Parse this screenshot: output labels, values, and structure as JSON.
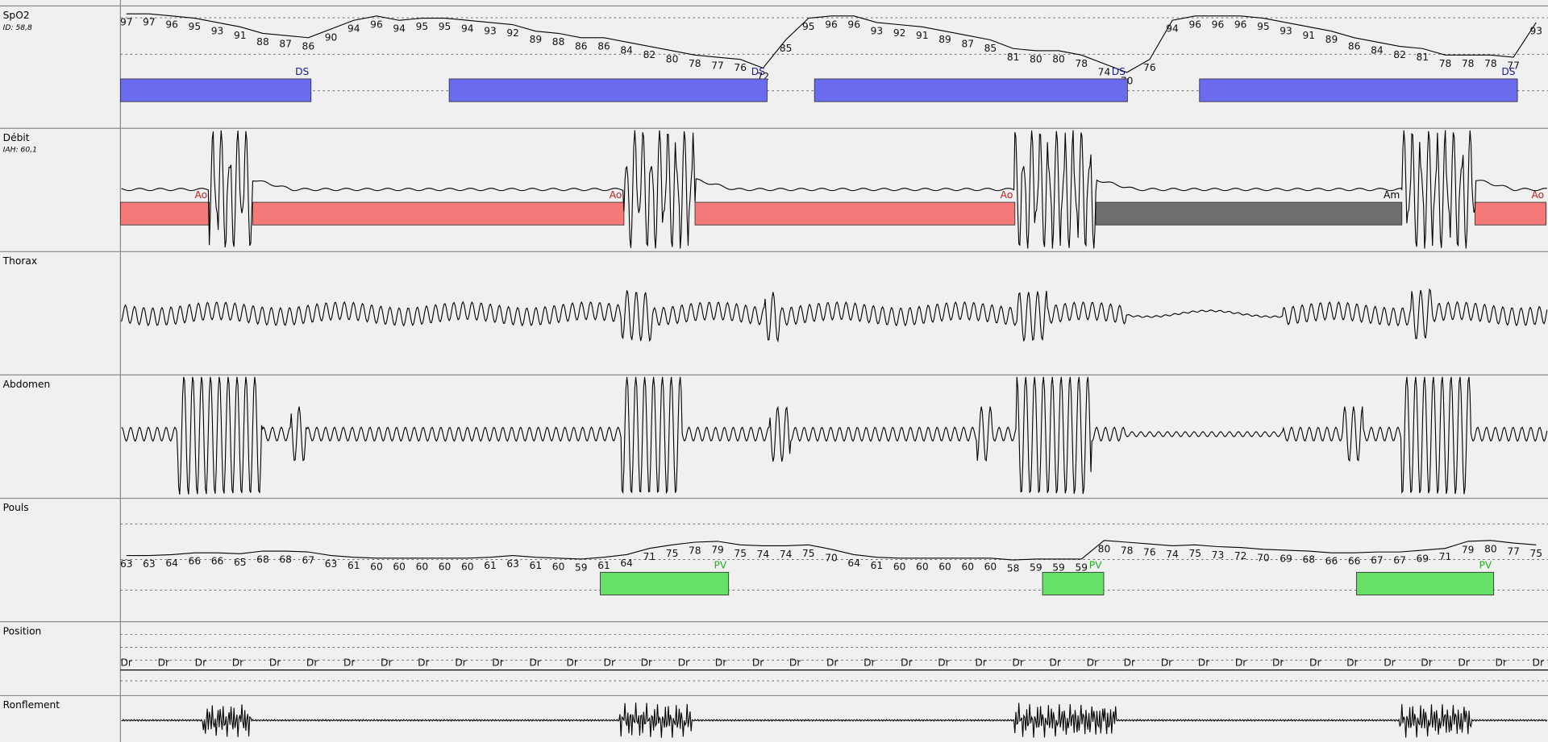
{
  "channels": [
    {
      "name": "SpO2",
      "info": "ID: 58,8",
      "readings": [
        97,
        97,
        96,
        95,
        93,
        91,
        88,
        87,
        86,
        90,
        94,
        96,
        94,
        95,
        95,
        94,
        93,
        92,
        89,
        88,
        86,
        86,
        84,
        82,
        80,
        78,
        77,
        76,
        72,
        85,
        95,
        96,
        96,
        93,
        92,
        91,
        89,
        87,
        85,
        81,
        80,
        80,
        78,
        74,
        70,
        76,
        94,
        96,
        96,
        96,
        95,
        93,
        91,
        89,
        86,
        84,
        82,
        81,
        78,
        78,
        78,
        77,
        93
      ],
      "events": [
        "DS",
        "DS",
        "DS",
        "DS"
      ]
    },
    {
      "name": "Débit",
      "info": "IAH: 60,1",
      "events": [
        "Ao",
        "Ao",
        "Ao",
        "Am",
        "Ao"
      ]
    },
    {
      "name": "Thorax"
    },
    {
      "name": "Abdomen"
    },
    {
      "name": "Pouls",
      "readings": [
        63,
        63,
        64,
        66,
        66,
        65,
        68,
        68,
        67,
        63,
        61,
        60,
        60,
        60,
        60,
        60,
        61,
        63,
        61,
        60,
        59,
        61,
        64,
        71,
        75,
        78,
        79,
        75,
        74,
        74,
        75,
        70,
        64,
        61,
        60,
        60,
        60,
        60,
        60,
        58,
        59,
        59,
        59,
        80,
        78,
        76,
        74,
        75,
        73,
        72,
        70,
        69,
        68,
        66,
        66,
        67,
        67,
        69,
        71,
        79,
        80,
        77,
        75
      ],
      "events": [
        "PV",
        "PV",
        "PV"
      ]
    },
    {
      "name": "Position",
      "readings": [
        "Dr",
        "Dr",
        "Dr",
        "Dr",
        "Dr",
        "Dr",
        "Dr",
        "Dr",
        "Dr",
        "Dr",
        "Dr",
        "Dr",
        "Dr",
        "Dr",
        "Dr",
        "Dr",
        "Dr",
        "Dr",
        "Dr",
        "Dr",
        "Dr",
        "Dr",
        "Dr",
        "Dr",
        "Dr",
        "Dr",
        "Dr",
        "Dr",
        "Dr",
        "Dr",
        "Dr",
        "Dr",
        "Dr",
        "Dr",
        "Dr",
        "Dr",
        "Dr",
        "Dr",
        "Dr"
      ]
    },
    {
      "name": "Ronflement"
    }
  ]
}
